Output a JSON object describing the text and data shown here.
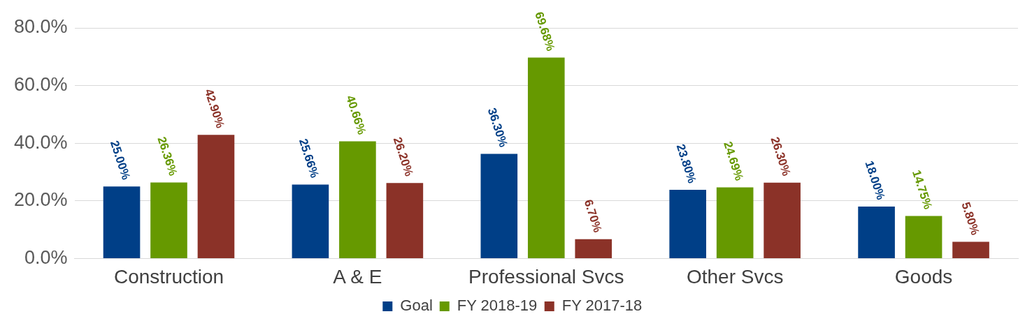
{
  "chart_data": {
    "type": "bar",
    "categories": [
      "Construction",
      "A & E",
      "Professional Svcs",
      "Other Svcs",
      "Goods"
    ],
    "series": [
      {
        "name": "Goal",
        "color": "#003f87",
        "values": [
          25.0,
          25.66,
          36.3,
          23.8,
          18.0
        ],
        "value_labels": [
          "25.00%",
          "25.66%",
          "36.30%",
          "23.80%",
          "18.00%"
        ]
      },
      {
        "name": "FY 2018-19",
        "color": "#669900",
        "values": [
          26.36,
          40.66,
          69.68,
          24.69,
          14.75
        ],
        "value_labels": [
          "26.36%",
          "40.66%",
          "69.68%",
          "24.69%",
          "14.75%"
        ]
      },
      {
        "name": "FY 2017-18",
        "color": "#8b3228",
        "values": [
          42.9,
          26.2,
          6.7,
          26.3,
          5.8
        ],
        "value_labels": [
          "42.90%",
          "26.20%",
          "6.70%",
          "26.30%",
          "5.80%"
        ]
      }
    ],
    "ylim": [
      0,
      80
    ],
    "yticks": [
      {
        "value": 0,
        "label": "0.0%"
      },
      {
        "value": 20,
        "label": "20.0%"
      },
      {
        "value": 40,
        "label": "40.0%"
      },
      {
        "value": 60,
        "label": "60.0%"
      },
      {
        "value": 80,
        "label": "80.0%"
      }
    ],
    "grid": "y",
    "legend": "bottom"
  }
}
